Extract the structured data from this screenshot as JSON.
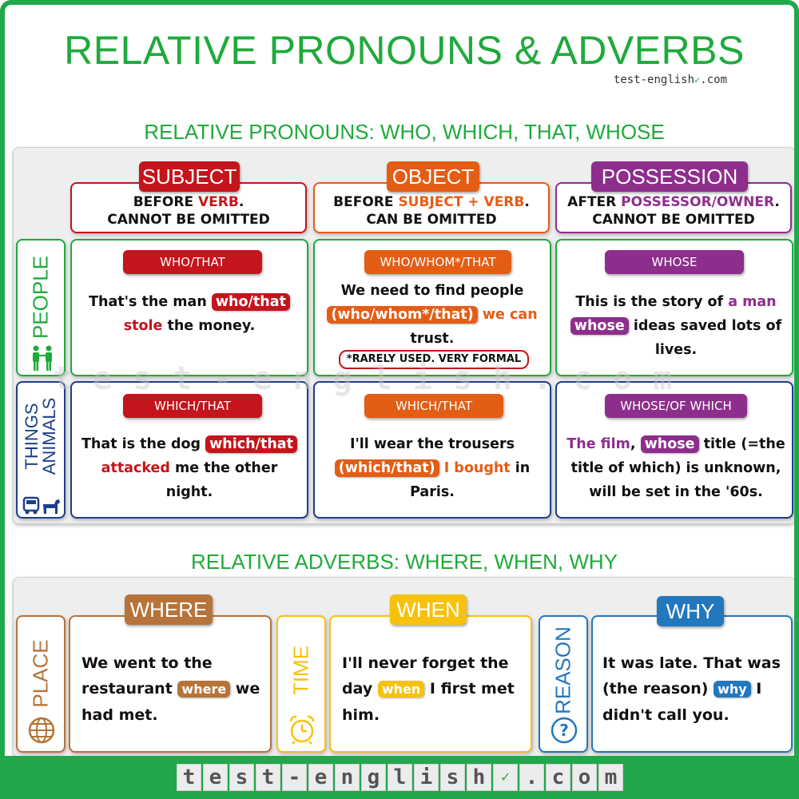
{
  "title": "RELATIVE PRONOUNS & ADVERBS",
  "brand": {
    "small_a": "test-english",
    "small_b": ".com",
    "check": "✓"
  },
  "footer_letters": [
    "t",
    "e",
    "s",
    "t",
    "-",
    "e",
    "n",
    "g",
    "l",
    "i",
    "s",
    "h",
    "✓",
    ".",
    "c",
    "o",
    "m"
  ],
  "watermark": "test-english.com",
  "pronouns": {
    "section_title": "RELATIVE PRONOUNS: WHO, WHICH, THAT, WHOSE",
    "columns": [
      {
        "tag": "SUBJECT",
        "desc_pre": "BEFORE ",
        "desc_hl": "VERB",
        "desc_post": ".",
        "desc_line2": "CANNOT BE OMITTED",
        "color": "#c4141c"
      },
      {
        "tag": "OBJECT",
        "desc_pre": "BEFORE ",
        "desc_hl": "SUBJECT + VERB",
        "desc_post": ".",
        "desc_line2": "CAN BE OMITTED",
        "color": "#e45d15"
      },
      {
        "tag": "POSSESSION",
        "desc_pre": "AFTER ",
        "desc_hl": "POSSESSOR/OWNER",
        "desc_post": ".",
        "desc_line2": "CANNOT BE OMITTED",
        "color": "#8e2e8c"
      }
    ],
    "rows": [
      {
        "label": "PEOPLE",
        "icon": "people-icon"
      },
      {
        "label_line1": "THINGS",
        "label_line2": "ANIMALS",
        "icon": "car-dog-icon"
      }
    ],
    "cells": {
      "people_subject": {
        "tag": "WHO/THAT",
        "s1": "That's the man ",
        "hl": "who/that",
        "s2": "stole",
        "s3": " the money."
      },
      "people_object": {
        "tag": "WHO/WHOM*/THAT",
        "s1": "We need to find people",
        "hl": "(who/whom*/that)",
        "s2": " we can",
        "s3": "trust.",
        "note": "*RARELY USED. VERY FORMAL"
      },
      "people_possession": {
        "tag": "WHOSE",
        "s1": "This is the story of ",
        "s2": "a man",
        "hl": "whose",
        "s3": " ideas saved lots of",
        "s4": "lives."
      },
      "things_subject": {
        "tag": "WHICH/THAT",
        "s1": "That is the dog ",
        "hl": "which/that",
        "s2": "attacked",
        "s3": " me the other",
        "s4": "night."
      },
      "things_object": {
        "tag": "WHICH/THAT",
        "s1": "I'll wear the trousers",
        "hl": "(which/that)",
        "s2": " I bought",
        "s3": " in",
        "s4": "Paris."
      },
      "things_possession": {
        "tag": "WHOSE/OF WHICH",
        "s1": "The film",
        "s2": ", ",
        "hl": "whose",
        "s3": " title (=the",
        "s4": "title of which) is unknown,",
        "s5": "will be set in the '60s."
      }
    }
  },
  "adverbs": {
    "section_title": "RELATIVE ADVERBS: WHERE, WHEN, WHY",
    "items": [
      {
        "side_label": "PLACE",
        "icon": "globe-icon",
        "tag": "WHERE",
        "l1": "We went to the",
        "l2a": "restaurant ",
        "hl": "where",
        "l2b": " we",
        "l3": "had met.",
        "color": "#b6733a"
      },
      {
        "side_label": "TIME",
        "icon": "alarm-clock-icon",
        "tag": "WHEN",
        "l1": "I'll never forget the",
        "l2a": "day ",
        "hl": "when",
        "l2b": "  I first met",
        "l3": "him.",
        "color": "#f6c20e"
      },
      {
        "side_label": "REASON",
        "icon": "question-icon",
        "tag": "WHY",
        "l1": "It was late. That was",
        "l2a": "(the reason) ",
        "hl": "why",
        "l2b": "  I",
        "l3": "didn't call you.",
        "color": "#2377bd"
      }
    ]
  }
}
